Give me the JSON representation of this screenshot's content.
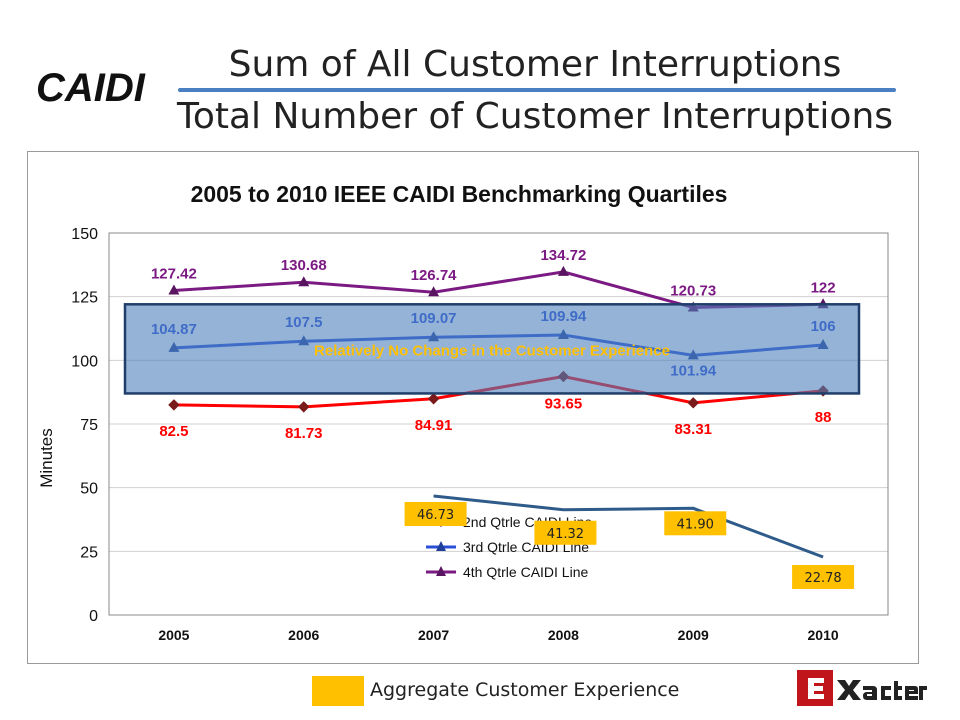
{
  "slide": {
    "heading": "CAIDI",
    "formula_numerator": "Sum of All Customer Interruptions",
    "formula_denominator": "Total Number of Customer Interruptions",
    "footer_legend_text": "Aggregate Customer Experience",
    "footer_swatch_color": "#ffc000",
    "brand_logo": "Exacter"
  },
  "colors": {
    "q2": "#ff0000",
    "q3": "#2a4fd6",
    "q4": "#7b1a83",
    "aggregate_line": "#2e5b8a",
    "aggregate_label_bg": "#ffc000",
    "band_fill": "#4f81bd",
    "band_text": "#ffc000"
  },
  "chart_data": {
    "type": "line",
    "title": "2005 to 2010 IEEE CAIDI Benchmarking Quartiles",
    "xlabel": "",
    "ylabel": "Minutes",
    "categories": [
      "2005",
      "2006",
      "2007",
      "2008",
      "2009",
      "2010"
    ],
    "ylim": [
      0,
      150
    ],
    "yticks": [
      0,
      25,
      50,
      75,
      100,
      125,
      150
    ],
    "grid": true,
    "legend_position": "bottom-center",
    "series": [
      {
        "name": "2nd Qtrle CAIDI Line",
        "color_key": "q2",
        "marker": "diamond",
        "values": [
          82.5,
          81.73,
          84.91,
          93.65,
          83.31,
          88
        ],
        "labels": [
          "82.5",
          "81.73",
          "84.91",
          "93.65",
          "83.31",
          "88"
        ]
      },
      {
        "name": "3rd Qtrle CAIDI Line",
        "color_key": "q3",
        "marker": "triangle",
        "values": [
          104.87,
          107.5,
          109.07,
          109.94,
          101.94,
          106
        ],
        "labels": [
          "104.87",
          "107.5",
          "109.07",
          "109.94",
          "101.94",
          "106"
        ]
      },
      {
        "name": "4th Qtrle CAIDI Line",
        "color_key": "q4",
        "marker": "triangle",
        "values": [
          127.42,
          130.68,
          126.74,
          134.72,
          120.73,
          122
        ],
        "labels": [
          "127.42",
          "130.68",
          "126.74",
          "134.72",
          "120.73",
          "122"
        ]
      }
    ],
    "aggregate_series": {
      "name": "Aggregate Customer Experience",
      "x_positions": [
        2007,
        2008,
        2009,
        2010
      ],
      "values": [
        46.73,
        41.32,
        41.9,
        22.78
      ],
      "labels": [
        "46.73",
        "41.32",
        "41.90",
        "22.78"
      ]
    },
    "band": {
      "text": "Relatively No Change in the Customer Experience",
      "y_from": 87,
      "y_to": 122
    }
  }
}
